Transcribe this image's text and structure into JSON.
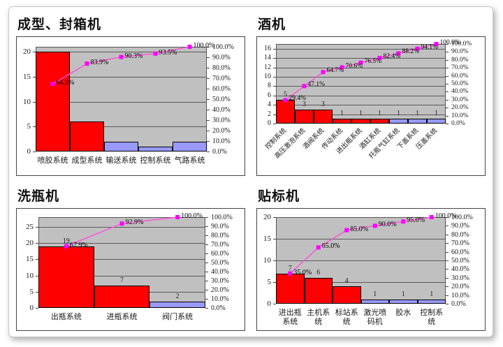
{
  "page": {
    "background": "#ffffff"
  },
  "colors": {
    "bar_primary": "#ff0000",
    "bar_secondary": "#9999ff",
    "line": "#ff4fd8",
    "marker": "#ff00ff",
    "plot_background": "#c0c0c0",
    "gridline": "#5a5a5a"
  },
  "right_axis_labels": [
    "100.0%",
    "90.0%",
    "80.0%",
    "70.0%",
    "60.0%",
    "50.0%",
    "40.0%",
    "30.0%",
    "20.0%",
    "10.0%",
    "0.0%"
  ],
  "chart_data": [
    {
      "type": "pareto (bar + cumulative line)",
      "title": "成型、封箱机",
      "categories": [
        "喷胶系统",
        "成型系统",
        "输送系统",
        "控制系统",
        "气路系统"
      ],
      "values": [
        20,
        6,
        2,
        1,
        2
      ],
      "bar_colors": [
        "red",
        "red",
        "blue",
        "blue",
        "blue"
      ],
      "cumulative_pct": [
        64.5,
        83.9,
        90.3,
        93.5,
        100.0
      ],
      "cumulative_labels": [
        "64.5%",
        "83.9%",
        "90.3%",
        "93.5%",
        "100.0%"
      ],
      "bar_value_labels": [
        "",
        "",
        "",
        "",
        ""
      ],
      "left_ticks": [
        0,
        5,
        10,
        15,
        20
      ],
      "left_max": 21,
      "right_axis_min": "0.0%",
      "right_axis_max": "100.0%"
    },
    {
      "type": "pareto (bar + cumulative line)",
      "title": "酒机",
      "categories": [
        "控制系统",
        "高压激泡系统",
        "酒阀系统",
        "传动系统",
        "进出瓶系统",
        "酒缸系统",
        "托瓶气缸系统",
        "下盖系统",
        "压盖系统"
      ],
      "values": [
        5,
        3,
        3,
        1,
        1,
        1,
        1,
        1,
        1
      ],
      "bar_colors": [
        "red",
        "red",
        "red",
        "red",
        "red",
        "red",
        "blue",
        "blue",
        "blue"
      ],
      "cumulative_pct": [
        29.4,
        47.1,
        64.7,
        70.6,
        76.5,
        82.4,
        88.2,
        94.1,
        100.0
      ],
      "cumulative_labels": [
        "29.4%",
        "47.1%",
        "64.7%",
        "70.6%",
        "76.5%",
        "82.4%",
        "88.2%",
        "94.1%",
        "100.0%"
      ],
      "bar_value_labels": [
        "5",
        "3",
        "3",
        "1",
        "1",
        "1",
        "1",
        "1",
        "1"
      ],
      "left_ticks": [
        0,
        2,
        4,
        6,
        8,
        10,
        12,
        14,
        16
      ],
      "left_max": 17,
      "right_axis_min": "0.0%",
      "right_axis_max": "100.0%"
    },
    {
      "type": "pareto (bar + cumulative line)",
      "title": "洗瓶机",
      "categories": [
        "出瓶系统",
        "进瓶系统",
        "阀门系统"
      ],
      "values": [
        19,
        7,
        2
      ],
      "bar_colors": [
        "red",
        "red",
        "blue"
      ],
      "cumulative_pct": [
        67.9,
        92.9,
        100.0
      ],
      "cumulative_labels": [
        "67.9%",
        "92.9%",
        "100.0%"
      ],
      "bar_value_labels": [
        "19",
        "7",
        "2"
      ],
      "left_ticks": [
        0,
        5,
        10,
        15,
        20,
        25
      ],
      "left_max": 28,
      "right_axis_min": "0.0%",
      "right_axis_max": "100.0%"
    },
    {
      "type": "pareto (bar + cumulative line)",
      "title": "贴标机",
      "categories": [
        "进出瓶\n系统",
        "主机系\n统",
        "标站系\n统",
        "激光喷\n码机",
        "胶水",
        "控制系\n统"
      ],
      "values": [
        7,
        6,
        4,
        1,
        1,
        1
      ],
      "bar_colors": [
        "red",
        "red",
        "red",
        "blue",
        "blue",
        "blue"
      ],
      "cumulative_pct": [
        35.0,
        65.0,
        85.0,
        90.0,
        95.0,
        100.0
      ],
      "cumulative_labels": [
        "35.0%",
        "65.0%",
        "85.0%",
        "90.0%",
        "95.0%",
        "100.0%"
      ],
      "bar_value_labels": [
        "7",
        "6",
        "4",
        "1",
        "1",
        "1"
      ],
      "left_ticks": [
        0,
        5,
        10,
        15,
        20
      ],
      "left_max": 20,
      "right_axis_min": "0.0%",
      "right_axis_max": "100.0%"
    }
  ]
}
